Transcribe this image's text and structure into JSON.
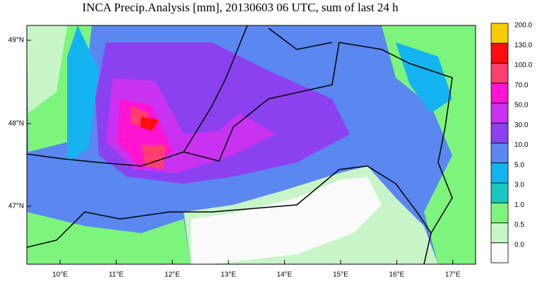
{
  "map": {
    "title": "INCA Precip.Analysis [mm], 20130603 06 UTC, sum of last 24 h",
    "lat_labels": [
      "49°N",
      "48°N",
      "47°N"
    ],
    "lon_labels": [
      "10°E",
      "11°E",
      "12°E",
      "13°E",
      "14°E",
      "15°E",
      "16°E",
      "17°E"
    ]
  },
  "legend": {
    "levels": [
      {
        "label": "200.0",
        "color": "#f7cc00"
      },
      {
        "label": "130.0",
        "color": "#ff0d0d"
      },
      {
        "label": "100.0",
        "color": "#ff3d6e"
      },
      {
        "label": "70.0",
        "color": "#ff14d2"
      },
      {
        "label": "50.0",
        "color": "#c832f0"
      },
      {
        "label": "30.0",
        "color": "#8c41f0"
      },
      {
        "label": "10.0",
        "color": "#5a87f0"
      },
      {
        "label": "5.0",
        "color": "#14b4f0"
      },
      {
        "label": "3.0",
        "color": "#19c8c3"
      },
      {
        "label": "1.0",
        "color": "#7df57d"
      },
      {
        "label": "0.5",
        "color": "#c8f5c8"
      },
      {
        "label": "0.0",
        "color": "#fafafa"
      }
    ]
  }
}
